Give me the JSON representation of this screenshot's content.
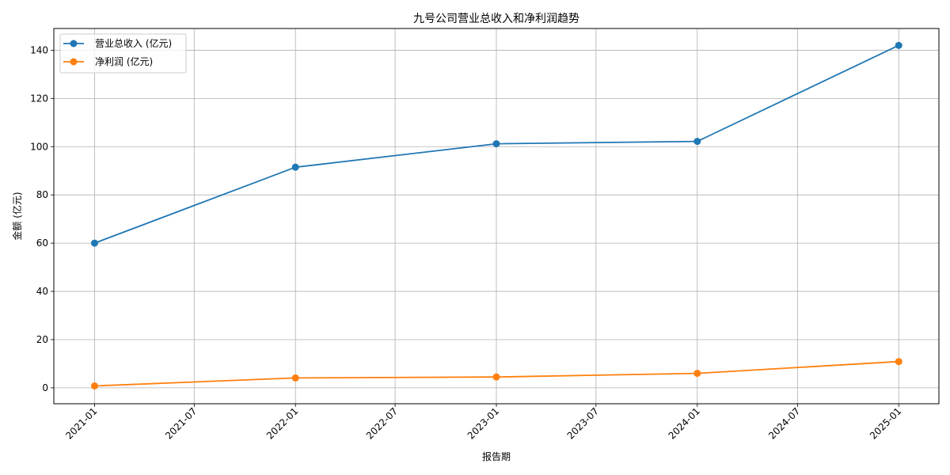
{
  "chart_data": {
    "type": "line",
    "title": "九号公司营业总收入和净利润趋势",
    "xlabel": "报告期",
    "ylabel": "金额 (亿元)",
    "x": [
      "2021-01-01",
      "2022-01-01",
      "2023-01-01",
      "2024-01-01",
      "2025-01-01"
    ],
    "x_ticks": [
      "2021-01",
      "2021-07",
      "2022-01",
      "2022-07",
      "2023-01",
      "2023-07",
      "2024-01",
      "2024-07",
      "2025-01"
    ],
    "y_ticks": [
      "0",
      "20",
      "40",
      "60",
      "80",
      "100",
      "120",
      "140"
    ],
    "ylim": [
      -6.6,
      149
    ],
    "xlim": [
      "2020-10-19",
      "2025-03-15"
    ],
    "grid": true,
    "legend_position": "top-left",
    "series": [
      {
        "name": "营业总收入 (亿元)",
        "color": "#1f77b4",
        "values": [
          60.0,
          91.5,
          101.2,
          102.2,
          142.0
        ]
      },
      {
        "name": "净利润 (亿元)",
        "color": "#ff7f0e",
        "values": [
          0.8,
          4.1,
          4.5,
          6.0,
          10.9
        ]
      }
    ]
  }
}
